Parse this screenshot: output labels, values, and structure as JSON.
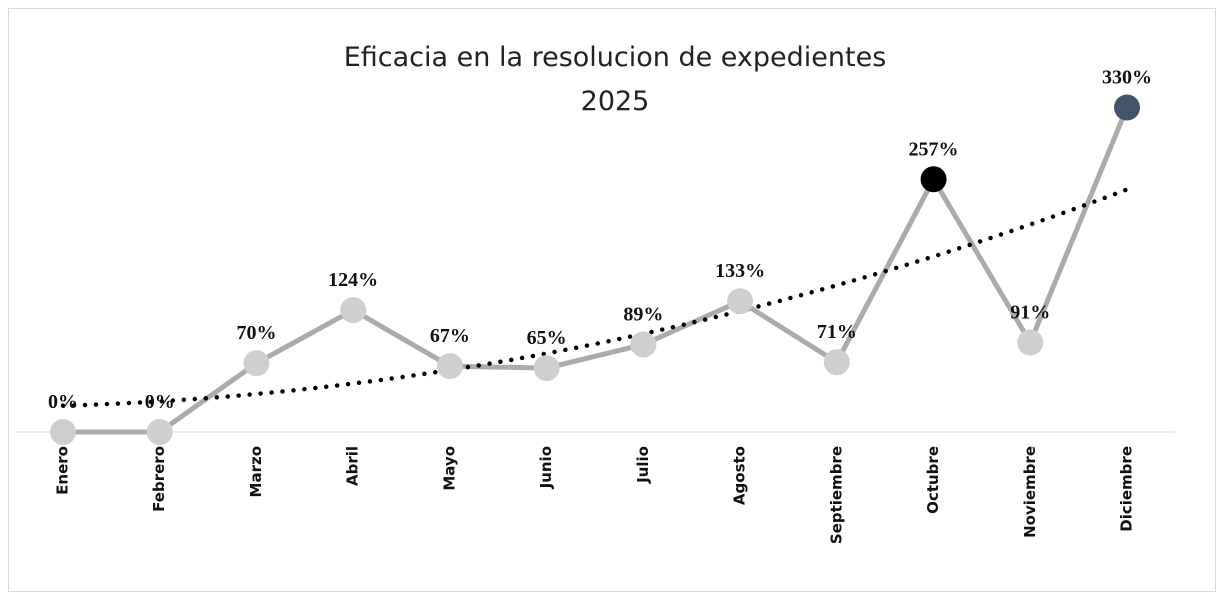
{
  "chart_data": {
    "type": "line",
    "title": [
      "Eficacia en la resolucion de expedientes",
      "2025"
    ],
    "categories": [
      "Enero",
      "Febrero",
      "Marzo",
      "Abril",
      "Mayo",
      "Junio",
      "Julio",
      "Agosto",
      "Septiembre",
      "Octubre",
      "Noviembre",
      "Diciembre"
    ],
    "values": [
      0,
      0,
      70,
      124,
      67,
      65,
      89,
      133,
      71,
      257,
      91,
      330
    ],
    "value_labels": [
      "0%",
      "0%",
      "70%",
      "124%",
      "67%",
      "65%",
      "89%",
      "133%",
      "71%",
      "257%",
      "91%",
      "330%"
    ],
    "color": "#aeaaaa",
    "point_colors": [
      "#d0cece",
      "#d0cece",
      "#d0cece",
      "#d0cece",
      "#d0cece",
      "#d0cece",
      "#d0cece",
      "#d0cece",
      "#d0cece",
      "#000000",
      "#d0cece",
      "#44546a"
    ],
    "ylim": [
      0,
      360
    ],
    "trendline": "polynomial"
  }
}
